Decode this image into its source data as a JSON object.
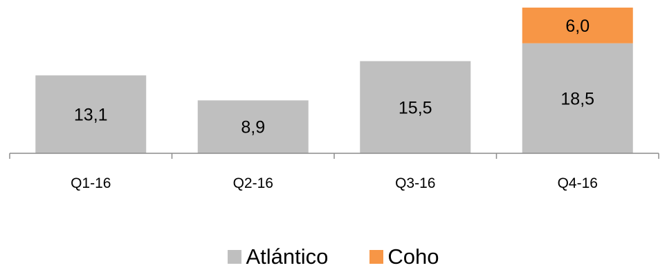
{
  "chart_data": {
    "type": "bar",
    "stacked": true,
    "categories": [
      "Q1-16",
      "Q2-16",
      "Q3-16",
      "Q4-16"
    ],
    "series": [
      {
        "name": "Atlántico",
        "color": "#BFBFBF",
        "values": [
          13.1,
          8.9,
          15.5,
          18.5
        ],
        "labels": [
          "13,1",
          "8,9",
          "15,5",
          "18,5"
        ]
      },
      {
        "name": "Coho",
        "color": "#F79646",
        "values": [
          0,
          0,
          0,
          6.0
        ],
        "labels": [
          "",
          "",
          "",
          "6,0"
        ]
      }
    ],
    "ylim": [
      0,
      25
    ],
    "grid": false,
    "legend_position": "bottom"
  }
}
